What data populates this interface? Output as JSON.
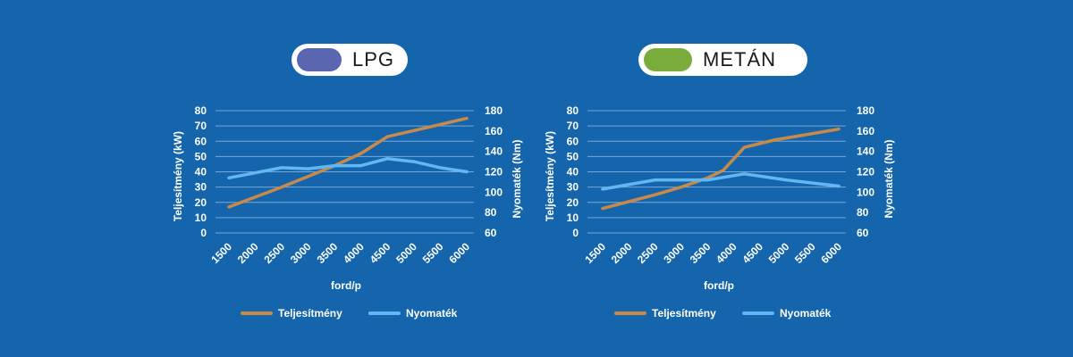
{
  "colors": {
    "background": "#1565ad",
    "power": "#c88a46",
    "torque": "#62b6f1",
    "lpg_swatch": "#5a67b0",
    "metan_swatch": "#79ac3b"
  },
  "charts": [
    {
      "badge": "LPG",
      "chart_data": {
        "type": "line",
        "x": [
          1500,
          2000,
          2500,
          3000,
          3500,
          4000,
          4500,
          5000,
          5500,
          6000
        ],
        "xlabel": "ford/p",
        "ylabel_left": "Teljesítmény (kW)",
        "ylabel_right": "Nyomaték (Nm)",
        "ylim_left": [
          0,
          80
        ],
        "ylim_right": [
          60,
          180
        ],
        "yticks_left": [
          0,
          10,
          20,
          30,
          40,
          50,
          60,
          70,
          80
        ],
        "yticks_right": [
          60,
          80,
          100,
          120,
          140,
          160,
          180
        ],
        "grid": true,
        "legend": "bottom",
        "series": [
          {
            "name": "Teljesítmény",
            "axis": "left",
            "color": "power",
            "points": [
              [
                1500,
                17
              ],
              [
                2500,
                30
              ],
              [
                3000,
                37
              ],
              [
                3500,
                44
              ],
              [
                4000,
                52
              ],
              [
                4500,
                63
              ],
              [
                5000,
                67
              ],
              [
                5500,
                71
              ],
              [
                6000,
                75
              ]
            ]
          },
          {
            "name": "Nyomaték",
            "axis": "right",
            "color": "torque",
            "points": [
              [
                1500,
                114
              ],
              [
                2500,
                124
              ],
              [
                3000,
                123
              ],
              [
                3500,
                126
              ],
              [
                4000,
                126
              ],
              [
                4500,
                133
              ],
              [
                5000,
                130
              ],
              [
                5500,
                124
              ],
              [
                6000,
                120
              ]
            ]
          }
        ]
      }
    },
    {
      "badge": "METÁN",
      "chart_data": {
        "type": "line",
        "x": [
          1500,
          2000,
          2500,
          3000,
          3500,
          4000,
          4500,
          5000,
          5500,
          6000
        ],
        "xlabel": "ford/p",
        "ylabel_left": "Teljesítmény (kW)",
        "ylabel_right": "Nyomaték (Nm)",
        "ylim_left": [
          0,
          80
        ],
        "ylim_right": [
          60,
          180
        ],
        "yticks_left": [
          0,
          10,
          20,
          30,
          40,
          50,
          60,
          70,
          80
        ],
        "yticks_right": [
          60,
          80,
          100,
          120,
          140,
          160,
          180
        ],
        "grid": true,
        "legend": "bottom",
        "series": [
          {
            "name": "Teljesítmény",
            "axis": "left",
            "color": "power",
            "points": [
              [
                1500,
                16
              ],
              [
                2500,
                25
              ],
              [
                3000,
                30
              ],
              [
                3500,
                36
              ],
              [
                3800,
                41
              ],
              [
                4200,
                56
              ],
              [
                4800,
                61
              ],
              [
                5500,
                65
              ],
              [
                6000,
                68
              ]
            ]
          },
          {
            "name": "Nyomaték",
            "axis": "right",
            "color": "torque",
            "points": [
              [
                1500,
                103
              ],
              [
                2500,
                112
              ],
              [
                3000,
                112
              ],
              [
                3500,
                112
              ],
              [
                4200,
                118
              ],
              [
                5000,
                112
              ],
              [
                6000,
                106
              ]
            ]
          }
        ]
      }
    }
  ]
}
